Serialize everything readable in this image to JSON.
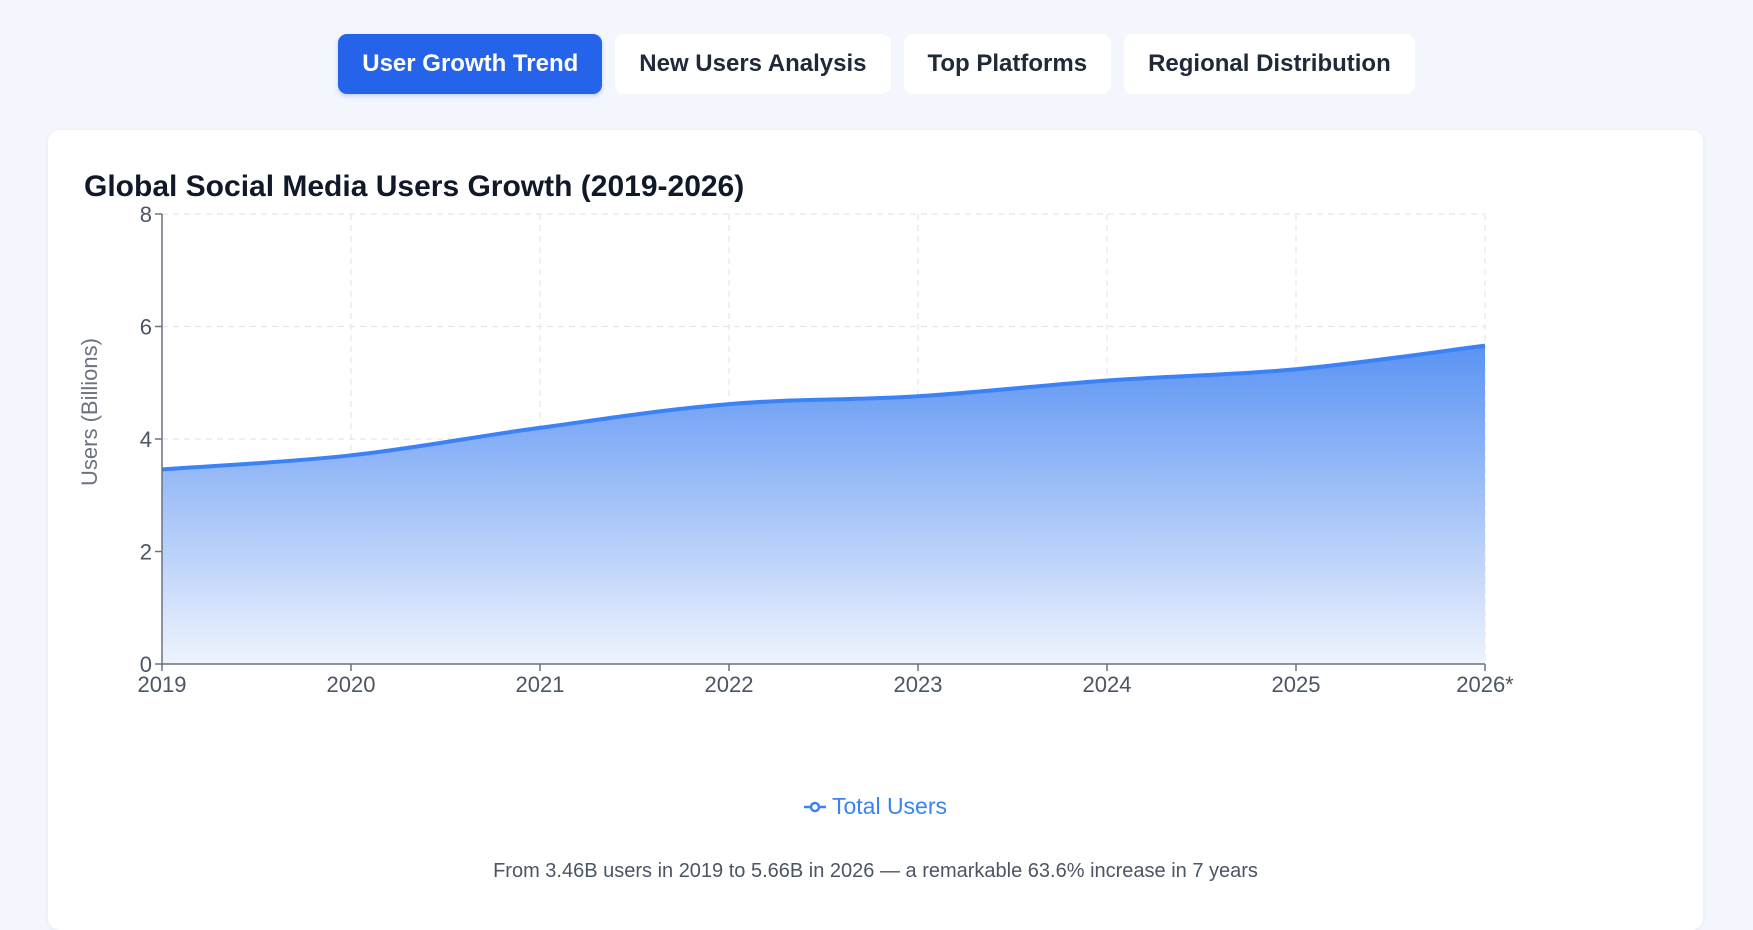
{
  "tabs": [
    {
      "label": "User Growth Trend",
      "active": true
    },
    {
      "label": "New Users Analysis",
      "active": false
    },
    {
      "label": "Top Platforms",
      "active": false
    },
    {
      "label": "Regional Distribution",
      "active": false
    }
  ],
  "card": {
    "title": "Global Social Media Users Growth (2019-2026)",
    "footnote": "From 3.46B users in 2019 to 5.66B in 2026 — a remarkable 63.6% increase in 7 years"
  },
  "colors": {
    "accent": "#2563eb",
    "line": "#3b82f6",
    "fill_top": "#5b93f3",
    "fill_bottom": "#eef3fd"
  },
  "chart_data": {
    "type": "area",
    "title": "Global Social Media Users Growth (2019-2026)",
    "x": [
      "2019",
      "2020",
      "2021",
      "2022",
      "2023",
      "2024",
      "2025",
      "2026*"
    ],
    "series": [
      {
        "name": "Total Users",
        "values": [
          3.46,
          3.71,
          4.2,
          4.62,
          4.76,
          5.04,
          5.24,
          5.66
        ]
      }
    ],
    "xlabel": "",
    "ylabel": "Users (Billions)",
    "ylim": [
      0,
      8
    ],
    "yticks": [
      0,
      2,
      4,
      6,
      8
    ],
    "grid": true,
    "legend": "bottom"
  }
}
